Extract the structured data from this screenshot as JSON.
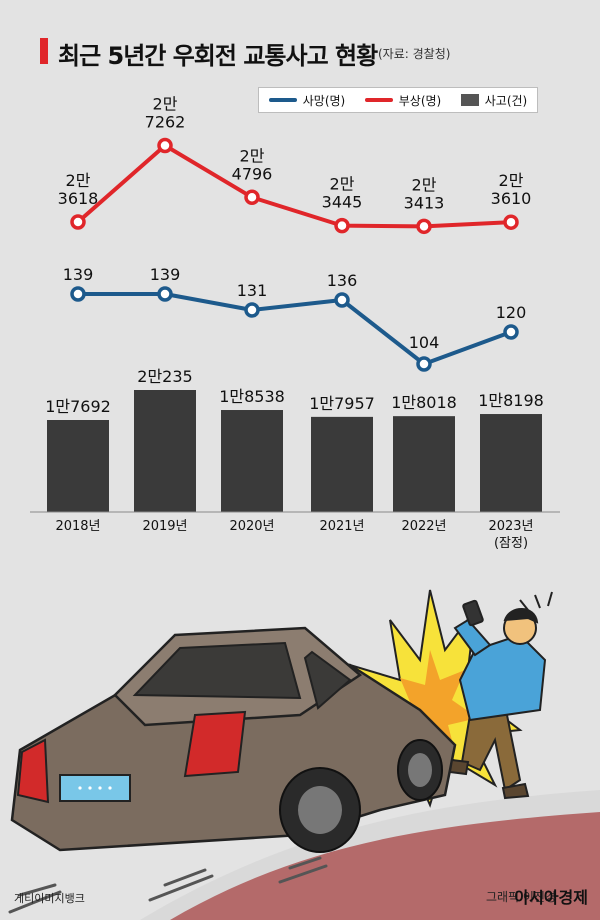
{
  "header": {
    "title": "최근 5년간 우회전 교통사고 현황",
    "source": "(자료: 경찰청)"
  },
  "legend": {
    "deaths": "사망(명)",
    "injuries": "부상(명)",
    "accidents": "사고(건)"
  },
  "colors": {
    "deaths": "#1d5a8c",
    "injuries": "#e0262a",
    "accidents": "#3a3a3a",
    "accent_bar": "#e0262a"
  },
  "footer": {
    "credit_left": "게티이미지뱅크",
    "credit_right": "그래픽 이진경",
    "brand": "아시아경제"
  },
  "chart_data": {
    "type": "bar",
    "categories": [
      "2018년",
      "2019년",
      "2020년",
      "2021년",
      "2022년",
      "2023년\n(잠정)"
    ],
    "series": [
      {
        "name": "부상(명)",
        "type": "line",
        "values": [
          23618,
          27262,
          24796,
          23445,
          23413,
          23610
        ],
        "labels": [
          "2만\n3618",
          "2만\n7262",
          "2만\n4796",
          "2만\n3445",
          "2만\n3413",
          "2만\n3610"
        ]
      },
      {
        "name": "사망(명)",
        "type": "line",
        "values": [
          139,
          139,
          131,
          136,
          104,
          120
        ],
        "labels": [
          "139",
          "139",
          "131",
          "136",
          "104",
          "120"
        ]
      },
      {
        "name": "사고(건)",
        "type": "bar",
        "values": [
          17692,
          20235,
          18538,
          17957,
          18018,
          18198
        ],
        "labels": [
          "1만7692",
          "2만235",
          "1만8538",
          "1만7957",
          "1만8018",
          "1만8198"
        ]
      }
    ],
    "grid": false,
    "legend_position": "top-right"
  }
}
